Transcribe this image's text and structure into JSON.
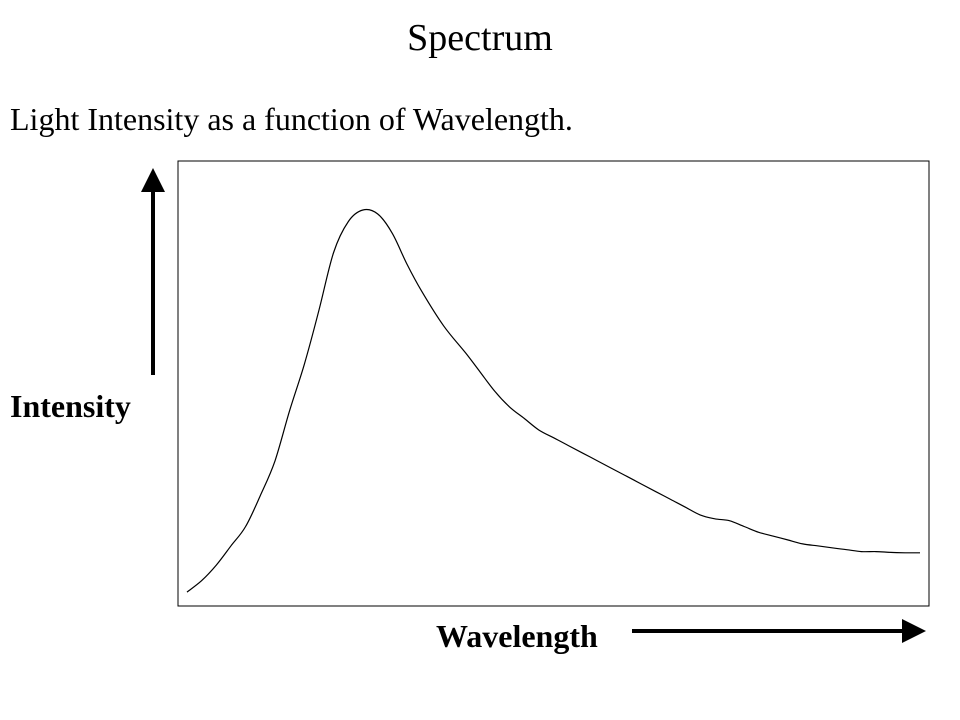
{
  "title": "Spectrum",
  "subtitle": "Light Intensity as a function of Wavelength.",
  "chart_data": {
    "type": "line",
    "xlabel": "Wavelength",
    "ylabel": "Intensity",
    "axis_ticks": false,
    "grid": false,
    "legend": "none",
    "x": [
      0,
      0.02,
      0.04,
      0.06,
      0.08,
      0.1,
      0.12,
      0.14,
      0.16,
      0.18,
      0.2,
      0.22,
      0.24,
      0.26,
      0.28,
      0.3,
      0.32,
      0.35,
      0.38,
      0.4,
      0.42,
      0.44,
      0.46,
      0.48,
      0.5,
      0.52,
      0.55,
      0.58,
      0.6,
      0.62,
      0.64,
      0.66,
      0.68,
      0.7,
      0.72,
      0.74,
      0.76,
      0.78,
      0.8,
      0.82,
      0.84,
      0.86,
      0.88,
      0.9,
      0.92,
      0.94,
      0.96,
      0.98,
      1.0
    ],
    "values": [
      0.01,
      0.04,
      0.08,
      0.13,
      0.18,
      0.26,
      0.35,
      0.48,
      0.6,
      0.74,
      0.89,
      0.97,
      1.0,
      0.99,
      0.94,
      0.86,
      0.79,
      0.7,
      0.63,
      0.58,
      0.53,
      0.49,
      0.46,
      0.43,
      0.41,
      0.39,
      0.36,
      0.33,
      0.31,
      0.29,
      0.27,
      0.25,
      0.23,
      0.21,
      0.2,
      0.195,
      0.18,
      0.165,
      0.155,
      0.145,
      0.135,
      0.13,
      0.125,
      0.12,
      0.115,
      0.115,
      0.113,
      0.112,
      0.112
    ],
    "line_color": "#000000"
  }
}
